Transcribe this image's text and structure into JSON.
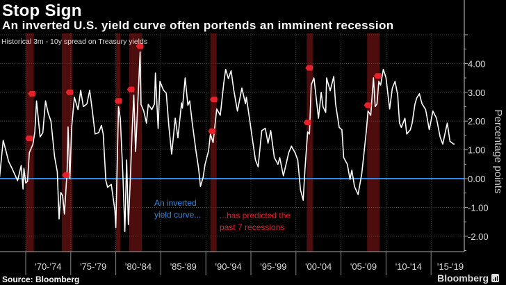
{
  "header": {
    "title": "Stop Sign",
    "subtitle": "An inverted U.S. yield curve often portends an imminent recession"
  },
  "footer": {
    "source": "Source: Bloomberg",
    "brand": "Bloomberg"
  },
  "colors": {
    "background": "#000000",
    "line": "#ffffff",
    "zero_line": "#2e8ae6",
    "recession_band": "#5a0f0f",
    "marker": "#e8202a",
    "annotation_blue": "#2e8ae6",
    "annotation_red": "#e0202a"
  },
  "chart_data": {
    "type": "line",
    "title": "Historical 3m - 10y spread on Treasury yields",
    "ylabel": "Percentage points",
    "xlabel": "",
    "ylim": [
      -2.5,
      5
    ],
    "xlim": [
      1967.1,
      2017.9
    ],
    "y_axis_position": "right",
    "grid": true,
    "yticks": [
      4,
      3,
      2,
      1,
      0,
      -1,
      -2
    ],
    "ytick_labels": [
      "4.00",
      "3.00",
      "2.00",
      "1.00",
      "0.00",
      "-1.00",
      "-2.00"
    ],
    "categories": [
      "'70-'74",
      "'75-'79",
      "'80-'84",
      "'85-'89",
      "'90-'94",
      "'95-'99",
      "'00-'04",
      "'05-'09",
      "'10-'14",
      "'15-'19"
    ],
    "category_starts": [
      1970,
      1975,
      1980,
      1985,
      1990,
      1995,
      2000,
      2005,
      2010,
      2015
    ],
    "series": [
      {
        "x": [
          1967.1,
          1967.5,
          1967.8,
          1968.1,
          1968.5,
          1969.1,
          1969.5,
          1969.7,
          1969.8,
          1970.0,
          1970.2,
          1970.4,
          1970.8,
          1971.0,
          1971.2,
          1971.6,
          1971.9,
          1972.2,
          1972.5,
          1972.8,
          1973.2,
          1973.5,
          1973.7,
          1973.9,
          1974.1,
          1974.3,
          1974.6,
          1974.7,
          1974.9,
          1975.1,
          1975.4,
          1975.8,
          1976.1,
          1976.4,
          1976.8,
          1977.1,
          1977.4,
          1977.7,
          1978.1,
          1978.4,
          1978.6,
          1978.9,
          1979.1,
          1979.5,
          1979.9,
          1980.0,
          1980.3,
          1980.5,
          1980.8,
          1981.0,
          1981.2,
          1981.4,
          1981.6,
          1981.8,
          1982.0,
          1982.2,
          1982.4,
          1982.7,
          1982.8,
          1983.1,
          1983.4,
          1983.6,
          1984.0,
          1984.3,
          1984.4,
          1984.7,
          1984.9,
          1985.1,
          1985.3,
          1985.6,
          1985.9,
          1986.2,
          1986.6,
          1986.9,
          1987.3,
          1987.4,
          1987.7,
          1988.0,
          1988.2,
          1988.5,
          1988.9,
          1989.2,
          1989.4,
          1989.7,
          1989.9,
          1990.3,
          1990.5,
          1990.8,
          1991.2,
          1991.6,
          1992.0,
          1992.2,
          1992.5,
          1992.8,
          1993.1,
          1993.5,
          1994.0,
          1994.4,
          1994.5,
          1994.8,
          1995.2,
          1995.5,
          1995.8,
          1996.2,
          1996.6,
          1996.9,
          1997.2,
          1997.6,
          1998.0,
          1998.2,
          1998.6,
          1999.2,
          1999.5,
          1999.9,
          2000.2,
          2000.5,
          2000.8,
          2001.0,
          2001.3,
          2001.5,
          2001.7,
          2002.0,
          2002.5,
          2002.8,
          2003.0,
          2003.3,
          2003.4,
          2003.8,
          2004.2,
          2004.4,
          2004.8,
          2005.1,
          2005.3,
          2005.7,
          2006.0,
          2006.2,
          2006.5,
          2006.9,
          2007.3,
          2007.5,
          2007.8,
          2008.0,
          2008.3,
          2008.6,
          2008.8,
          2009.0,
          2009.2,
          2009.4,
          2009.7,
          2010.0,
          2010.4,
          2010.7,
          2011.0,
          2011.3,
          2011.5,
          2011.7,
          2012.1,
          2012.3,
          2012.7,
          2012.9,
          2013.2,
          2013.4,
          2013.7,
          2014.0,
          2014.4,
          2014.8,
          2015.2,
          2015.6,
          2016.0,
          2016.3,
          2016.8,
          2017.1,
          2017.5,
          2017.6
        ],
        "y": [
          0.05,
          1.33,
          0.97,
          0.6,
          0.34,
          -0.07,
          0.46,
          -0.36,
          0.36,
          -0.15,
          -0.1,
          0.9,
          1.2,
          1.6,
          2.7,
          1.45,
          1.6,
          2.7,
          2.27,
          2.0,
          0.77,
          0.24,
          -1.4,
          -0.48,
          -0.6,
          -1.23,
          0.29,
          1.8,
          0.0,
          1.78,
          2.83,
          2.4,
          3.07,
          2.5,
          2.6,
          3.07,
          2.35,
          1.55,
          1.6,
          1.85,
          1.55,
          -0.07,
          -0.3,
          -0.2,
          -1.1,
          -1.7,
          2.5,
          2.1,
          0.0,
          -1.84,
          0.65,
          -1.6,
          -0.15,
          1.55,
          2.9,
          0.94,
          2.33,
          4.4,
          2.58,
          2.35,
          1.93,
          2.58,
          2.4,
          2.6,
          3.67,
          1.74,
          3.38,
          3.22,
          3.07,
          2.97,
          1.78,
          0.85,
          2.1,
          1.42,
          2.63,
          2.45,
          3.5,
          2.55,
          2.7,
          1.9,
          0.97,
          0.34,
          -0.27,
          0.05,
          0.48,
          0.97,
          1.55,
          1.25,
          2.42,
          2.2,
          3.35,
          3.8,
          3.47,
          3.75,
          3.07,
          2.35,
          3.15,
          2.6,
          2.83,
          2.18,
          1.3,
          0.65,
          0.41,
          1.67,
          1.75,
          1.23,
          1.67,
          0.73,
          0.5,
          0.73,
          0.1,
          0.9,
          1.13,
          0.9,
          0.65,
          -0.39,
          -0.75,
          0.34,
          1.62,
          1.55,
          3.26,
          3.5,
          2.1,
          3.0,
          2.5,
          2.3,
          3.5,
          3.05,
          3.55,
          2.6,
          1.78,
          1.7,
          0.73,
          0.5,
          -0.03,
          0.3,
          -0.27,
          -0.55,
          0.16,
          0.73,
          1.62,
          2.35,
          2.2,
          3.5,
          2.5,
          2.6,
          3.38,
          3.25,
          3.8,
          3.5,
          2.42,
          3.15,
          3.38,
          2.9,
          1.93,
          1.78,
          2.1,
          1.55,
          1.7,
          1.93,
          2.58,
          2.8,
          2.95,
          2.6,
          2.4,
          1.7,
          2.35,
          2.1,
          1.45,
          1.2,
          1.93,
          1.3,
          1.2,
          1.2
        ]
      }
    ],
    "recessions": [
      [
        1970.0,
        1970.9
      ],
      [
        1974.0,
        1975.2
      ],
      [
        1980.0,
        1980.5
      ],
      [
        1981.5,
        1982.9
      ],
      [
        1990.5,
        1991.2
      ],
      [
        2001.2,
        2001.9
      ],
      [
        2007.9,
        2009.3
      ]
    ],
    "markers": [
      [
        1970.4,
        1.4
      ],
      [
        1970.7,
        2.95
      ],
      [
        1974.5,
        0.12
      ],
      [
        1974.9,
        3.0
      ],
      [
        1980.3,
        2.7
      ],
      [
        1981.7,
        3.1
      ],
      [
        1982.7,
        4.6
      ],
      [
        1990.7,
        1.65
      ],
      [
        1990.9,
        2.75
      ],
      [
        2001.3,
        1.95
      ],
      [
        2001.5,
        3.85
      ],
      [
        2008.0,
        2.55
      ],
      [
        2009.1,
        3.57
      ]
    ],
    "annotations": {
      "blue_line1": "An inverted",
      "blue_line2": "yield curve...",
      "red_line1": "...has predicted the",
      "red_line2": "past 7 recessions"
    }
  }
}
